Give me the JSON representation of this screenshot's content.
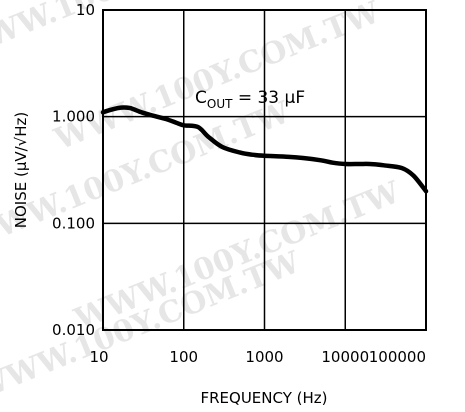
{
  "watermark": "WWW.100Y.COM.TW",
  "chart_data": {
    "type": "line",
    "xscale": "log",
    "yscale": "log",
    "xlim": [
      10,
      100000
    ],
    "ylim": [
      0.01,
      10
    ],
    "xlabel": "FREQUENCY (Hz)",
    "ylabel": "NOISE (μV/√Hz)",
    "x_ticks": [
      "10",
      "100",
      "1000",
      "10000",
      "100000"
    ],
    "y_ticks": [
      "0.010",
      "0.100",
      "1.000",
      "10"
    ],
    "grid": true,
    "annotation": {
      "c": "C",
      "sub": "OUT",
      "rest": " = 33 μF"
    },
    "series": [
      {
        "x": [
          10,
          12,
          15,
          18,
          22,
          30,
          40,
          60,
          80,
          100,
          150,
          200,
          300,
          500,
          700,
          1000,
          2000,
          3000,
          5000,
          7000,
          10000,
          15000,
          20000,
          30000,
          50000,
          70000,
          100000
        ],
        "y": [
          1.1,
          1.15,
          1.2,
          1.22,
          1.2,
          1.1,
          1.03,
          0.95,
          0.88,
          0.83,
          0.8,
          0.65,
          0.52,
          0.46,
          0.44,
          0.43,
          0.42,
          0.41,
          0.39,
          0.37,
          0.36,
          0.36,
          0.36,
          0.35,
          0.33,
          0.28,
          0.2
        ]
      }
    ]
  }
}
